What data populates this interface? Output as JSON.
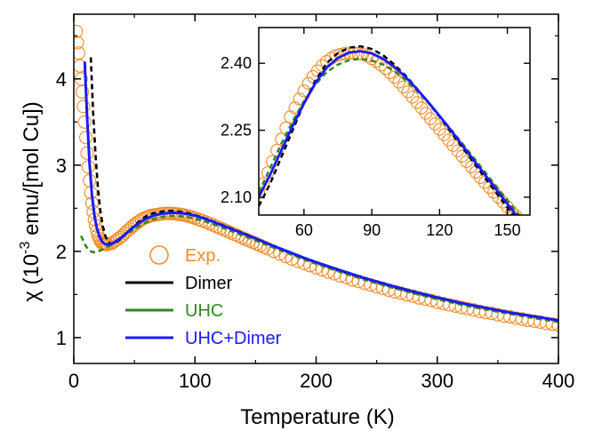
{
  "chart_data": {
    "type": "line",
    "xlabel": "Temperature (K)",
    "ylabel_prefix": "χ (10",
    "ylabel_exp": "-3",
    "ylabel_suffix": " emu/[mol Cu])",
    "xlim": [
      0,
      400
    ],
    "ylim": [
      0.7,
      4.75
    ],
    "xticks": [
      0,
      100,
      200,
      300,
      400
    ],
    "yticks": [
      1,
      2,
      3,
      4
    ],
    "grid": false,
    "legend_position": "lower-left",
    "series": [
      {
        "name": "Exp.",
        "color": "#f28c28",
        "style": "open-circles",
        "x": [
          2,
          3,
          4,
          5,
          6,
          7,
          8,
          9,
          10,
          11,
          12,
          13,
          14,
          15,
          16,
          17,
          18,
          19,
          20,
          21,
          22,
          23,
          24,
          25,
          26,
          27,
          28,
          30,
          32,
          34,
          36,
          38,
          40,
          42,
          44,
          46,
          48,
          50,
          52,
          54,
          56,
          58,
          60,
          62,
          64,
          66,
          68,
          70,
          72,
          74,
          76,
          78,
          80,
          82,
          84,
          86,
          88,
          90,
          92,
          94,
          96,
          98,
          100,
          103,
          106,
          109,
          112,
          115,
          118,
          121,
          124,
          127,
          130,
          133,
          136,
          139,
          142,
          145,
          148,
          151,
          154,
          157,
          160,
          165,
          170,
          175,
          180,
          185,
          190,
          195,
          200,
          205,
          210,
          215,
          220,
          225,
          230,
          235,
          240,
          245,
          250,
          255,
          260,
          265,
          270,
          275,
          280,
          285,
          290,
          295,
          300,
          305,
          310,
          315,
          320,
          325,
          330,
          335,
          340,
          345,
          350,
          355,
          360,
          365,
          370,
          375,
          380,
          385,
          390,
          395,
          400
        ],
        "y": [
          4.55,
          4.42,
          4.3,
          4.15,
          4.0,
          3.85,
          3.68,
          3.5,
          3.32,
          3.14,
          2.98,
          2.82,
          2.68,
          2.56,
          2.46,
          2.37,
          2.3,
          2.24,
          2.19,
          2.15,
          2.12,
          2.1,
          2.09,
          2.085,
          2.08,
          2.08,
          2.08,
          2.09,
          2.1,
          2.12,
          2.14,
          2.16,
          2.18,
          2.21,
          2.235,
          2.26,
          2.285,
          2.31,
          2.33,
          2.35,
          2.37,
          2.385,
          2.395,
          2.405,
          2.415,
          2.42,
          2.425,
          2.43,
          2.435,
          2.438,
          2.44,
          2.44,
          2.44,
          2.438,
          2.435,
          2.432,
          2.428,
          2.423,
          2.418,
          2.41,
          2.403,
          2.395,
          2.385,
          2.37,
          2.355,
          2.34,
          2.322,
          2.305,
          2.287,
          2.268,
          2.25,
          2.232,
          2.213,
          2.195,
          2.177,
          2.158,
          2.14,
          2.122,
          2.104,
          2.086,
          2.068,
          2.05,
          2.03,
          2.0,
          1.97,
          1.94,
          1.91,
          1.885,
          1.86,
          1.835,
          1.81,
          1.785,
          1.76,
          1.74,
          1.715,
          1.695,
          1.67,
          1.65,
          1.63,
          1.61,
          1.59,
          1.57,
          1.55,
          1.53,
          1.515,
          1.495,
          1.48,
          1.46,
          1.445,
          1.43,
          1.41,
          1.395,
          1.38,
          1.365,
          1.35,
          1.335,
          1.32,
          1.305,
          1.29,
          1.28,
          1.265,
          1.25,
          1.24,
          1.225,
          1.215,
          1.2,
          1.19,
          1.18,
          1.165,
          1.155,
          1.145
        ]
      },
      {
        "name": "Dimer",
        "color": "#000000",
        "style": "dashed",
        "x": [
          14,
          16,
          18,
          20,
          22,
          24,
          26,
          28,
          30,
          32,
          35,
          40,
          45,
          50,
          55,
          60,
          65,
          70,
          75,
          80,
          85,
          90,
          95,
          100,
          110,
          120,
          130,
          140,
          150,
          160,
          170,
          180,
          190,
          200,
          220,
          240,
          260,
          280,
          300,
          320,
          340,
          360,
          380,
          400
        ],
        "y": [
          4.25,
          3.6,
          3.1,
          2.72,
          2.46,
          2.29,
          2.18,
          2.12,
          2.09,
          2.09,
          2.1,
          2.16,
          2.23,
          2.3,
          2.36,
          2.41,
          2.44,
          2.455,
          2.465,
          2.47,
          2.465,
          2.455,
          2.44,
          2.42,
          2.375,
          2.32,
          2.265,
          2.21,
          2.15,
          2.09,
          2.03,
          1.975,
          1.92,
          1.87,
          1.77,
          1.685,
          1.6,
          1.525,
          1.46,
          1.395,
          1.34,
          1.29,
          1.245,
          1.2
        ]
      },
      {
        "name": "UHC",
        "color": "#2e8b1e",
        "style": "dashed",
        "x": [
          6,
          8,
          10,
          12,
          14,
          16,
          18,
          20,
          22,
          25,
          30,
          35,
          40,
          45,
          50,
          55,
          60,
          65,
          70,
          75,
          80,
          85,
          90,
          95,
          100,
          110,
          120,
          130,
          140,
          150,
          160,
          170,
          180,
          190,
          200,
          220,
          240,
          260,
          280,
          300,
          320,
          340,
          360,
          380,
          400
        ],
        "y": [
          2.18,
          2.12,
          2.06,
          2.02,
          2.0,
          1.99,
          1.99,
          2.0,
          2.01,
          2.03,
          2.07,
          2.11,
          2.16,
          2.21,
          2.26,
          2.3,
          2.34,
          2.37,
          2.39,
          2.405,
          2.41,
          2.41,
          2.405,
          2.395,
          2.38,
          2.34,
          2.29,
          2.235,
          2.18,
          2.125,
          2.07,
          2.015,
          1.96,
          1.905,
          1.855,
          1.76,
          1.67,
          1.59,
          1.515,
          1.445,
          1.38,
          1.325,
          1.275,
          1.225,
          1.18
        ]
      },
      {
        "name": "UHC+Dimer",
        "color": "#1a1aff",
        "style": "solid",
        "x": [
          9,
          11,
          13,
          15,
          17,
          19,
          21,
          23,
          25,
          27,
          30,
          33,
          36,
          40,
          45,
          50,
          55,
          60,
          65,
          70,
          75,
          80,
          85,
          90,
          95,
          100,
          110,
          120,
          130,
          140,
          150,
          160,
          170,
          180,
          190,
          200,
          220,
          240,
          260,
          280,
          300,
          320,
          340,
          360,
          380,
          400
        ],
        "y": [
          4.2,
          3.55,
          3.02,
          2.65,
          2.42,
          2.27,
          2.18,
          2.12,
          2.09,
          2.08,
          2.08,
          2.1,
          2.13,
          2.17,
          2.23,
          2.29,
          2.34,
          2.38,
          2.41,
          2.43,
          2.44,
          2.445,
          2.445,
          2.44,
          2.43,
          2.415,
          2.37,
          2.315,
          2.26,
          2.205,
          2.15,
          2.09,
          2.035,
          1.98,
          1.925,
          1.875,
          1.78,
          1.69,
          1.61,
          1.535,
          1.465,
          1.4,
          1.345,
          1.29,
          1.245,
          1.2
        ]
      }
    ],
    "inset": {
      "xlim": [
        40,
        160
      ],
      "ylim": [
        2.06,
        2.48
      ],
      "xticks": [
        60,
        90,
        120,
        150
      ],
      "yticks": [
        2.1,
        2.25,
        2.4
      ],
      "ytick_labels": [
        "2.10",
        "2.25",
        "2.40"
      ],
      "series": [
        {
          "name": "Exp.",
          "x": [
            40,
            42,
            44,
            46,
            48,
            50,
            52,
            54,
            56,
            58,
            60,
            62,
            64,
            66,
            68,
            70,
            72,
            74,
            76,
            78,
            80,
            82,
            84,
            86,
            88,
            90,
            92,
            94,
            96,
            98,
            100,
            102,
            104,
            106,
            108,
            110,
            112,
            114,
            116,
            118,
            120,
            122,
            124,
            126,
            128,
            130,
            132,
            134,
            136,
            138,
            140,
            142,
            144,
            146,
            148,
            150,
            152,
            154,
            156,
            158,
            160
          ],
          "y": [
            2.11,
            2.13,
            2.155,
            2.18,
            2.205,
            2.23,
            2.255,
            2.28,
            2.3,
            2.32,
            2.338,
            2.355,
            2.37,
            2.383,
            2.395,
            2.404,
            2.411,
            2.417,
            2.42,
            2.422,
            2.423,
            2.423,
            2.422,
            2.42,
            2.416,
            2.41,
            2.404,
            2.396,
            2.388,
            2.379,
            2.369,
            2.358,
            2.347,
            2.336,
            2.324,
            2.312,
            2.3,
            2.288,
            2.276,
            2.264,
            2.252,
            2.24,
            2.228,
            2.216,
            2.204,
            2.192,
            2.18,
            2.168,
            2.156,
            2.144,
            2.133,
            2.122,
            2.111,
            2.1,
            2.089,
            2.078,
            2.067,
            2.057,
            2.047,
            2.037,
            2.027
          ]
        },
        {
          "name": "Dimer",
          "x": [
            40,
            45,
            50,
            55,
            60,
            65,
            70,
            75,
            80,
            85,
            90,
            95,
            100,
            105,
            110,
            115,
            120,
            125,
            130,
            135,
            140,
            145,
            150,
            155,
            160
          ],
          "y": [
            2.08,
            2.13,
            2.19,
            2.25,
            2.31,
            2.36,
            2.4,
            2.423,
            2.435,
            2.438,
            2.432,
            2.418,
            2.397,
            2.372,
            2.343,
            2.312,
            2.28,
            2.246,
            2.212,
            2.178,
            2.144,
            2.11,
            2.077,
            2.045,
            2.013
          ]
        },
        {
          "name": "UHC",
          "x": [
            40,
            45,
            50,
            55,
            60,
            65,
            70,
            75,
            80,
            85,
            90,
            95,
            100,
            105,
            110,
            115,
            120,
            125,
            130,
            135,
            140,
            145,
            150,
            155,
            160
          ],
          "y": [
            2.11,
            2.165,
            2.22,
            2.27,
            2.315,
            2.352,
            2.38,
            2.397,
            2.407,
            2.41,
            2.406,
            2.397,
            2.382,
            2.362,
            2.338,
            2.311,
            2.282,
            2.252,
            2.221,
            2.189,
            2.157,
            2.125,
            2.093,
            2.062,
            2.031
          ]
        },
        {
          "name": "UHC+Dimer",
          "x": [
            40,
            45,
            50,
            55,
            60,
            65,
            70,
            75,
            80,
            85,
            90,
            95,
            100,
            105,
            110,
            115,
            120,
            125,
            130,
            135,
            140,
            145,
            150,
            155,
            160
          ],
          "y": [
            2.1,
            2.15,
            2.205,
            2.26,
            2.31,
            2.355,
            2.39,
            2.412,
            2.424,
            2.427,
            2.422,
            2.41,
            2.392,
            2.369,
            2.342,
            2.313,
            2.282,
            2.25,
            2.217,
            2.184,
            2.151,
            2.118,
            2.085,
            2.053,
            2.021
          ]
        }
      ]
    }
  }
}
